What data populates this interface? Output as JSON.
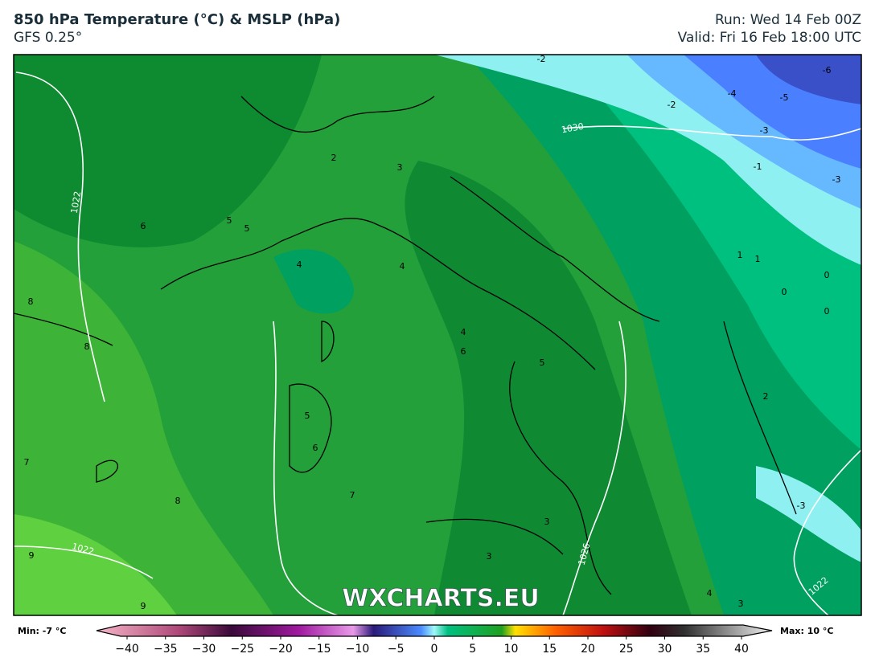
{
  "header": {
    "title": "850 hPa Temperature (°C) & MSLP (hPa)",
    "subtitle": "GFS 0.25°",
    "run": "Run: Wed 14 Feb 00Z",
    "valid": "Valid: Fri 16 Feb 18:00 UTC"
  },
  "map": {
    "watermark": "WXCHARTS.EU",
    "contour_labels": [
      "-6",
      "-5",
      "-4",
      "-3",
      "-2",
      "-2",
      "-1",
      "0",
      "0",
      "0",
      "1",
      "1",
      "2",
      "2",
      "3",
      "3",
      "3",
      "4",
      "4",
      "4",
      "5",
      "5",
      "5",
      "5",
      "6",
      "6",
      "6",
      "7",
      "7",
      "8",
      "8",
      "8",
      "9",
      "9",
      "-3",
      "-3",
      "4",
      "3"
    ],
    "isobar_labels": [
      "1022",
      "1022",
      "1026",
      "1030",
      "1022"
    ]
  },
  "colorbar": {
    "min_label": "Min: -7 °C",
    "max_label": "Max: 10 °C",
    "ticks": [
      {
        "value": -40,
        "label": "−40"
      },
      {
        "value": -35,
        "label": "−35"
      },
      {
        "value": -30,
        "label": "−30"
      },
      {
        "value": -25,
        "label": "−25"
      },
      {
        "value": -20,
        "label": "−20"
      },
      {
        "value": -15,
        "label": "−15"
      },
      {
        "value": -10,
        "label": "−10"
      },
      {
        "value": -5,
        "label": "−5"
      },
      0,
      5,
      10,
      15,
      20,
      25,
      30,
      35,
      40
    ]
  }
}
